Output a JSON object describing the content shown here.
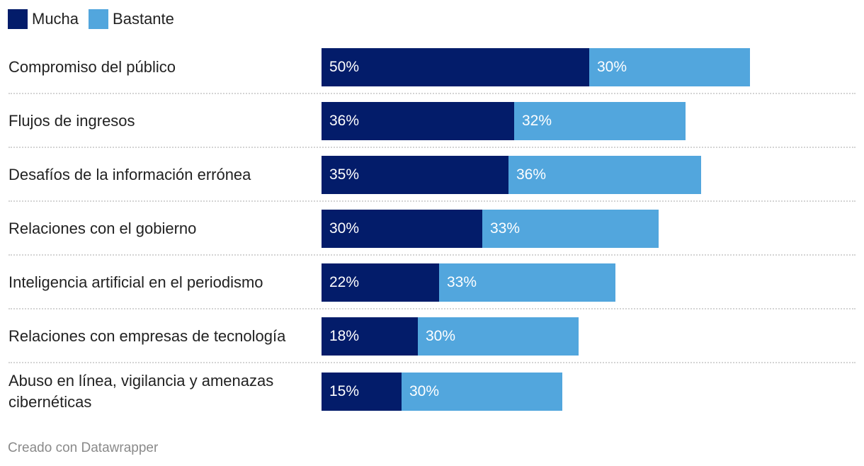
{
  "legend": {
    "mucha": "Mucha",
    "bastante": "Bastante"
  },
  "colors": {
    "mucha": "#031c6a",
    "bastante": "#52a6dd"
  },
  "chart_data": {
    "type": "bar",
    "orientation": "horizontal",
    "stacked": true,
    "title": "",
    "xlabel": "",
    "ylabel": "",
    "xlim": [
      0,
      100
    ],
    "legend_position": "top-left",
    "categories": [
      "Compromiso del público",
      "Flujos de ingresos",
      "Desafíos de la información errónea",
      "Relaciones con el gobierno",
      "Inteligencia artificial en el periodismo",
      "Relaciones con empresas de tecnología",
      "Abuso en línea, vigilancia y amenazas cibernéticas"
    ],
    "series": [
      {
        "name": "Mucha",
        "values": [
          50,
          36,
          35,
          30,
          22,
          18,
          15
        ]
      },
      {
        "name": "Bastante",
        "values": [
          30,
          32,
          36,
          33,
          33,
          30,
          30
        ]
      }
    ],
    "value_suffix": "%"
  },
  "footer": {
    "credit": "Creado con Datawrapper"
  }
}
